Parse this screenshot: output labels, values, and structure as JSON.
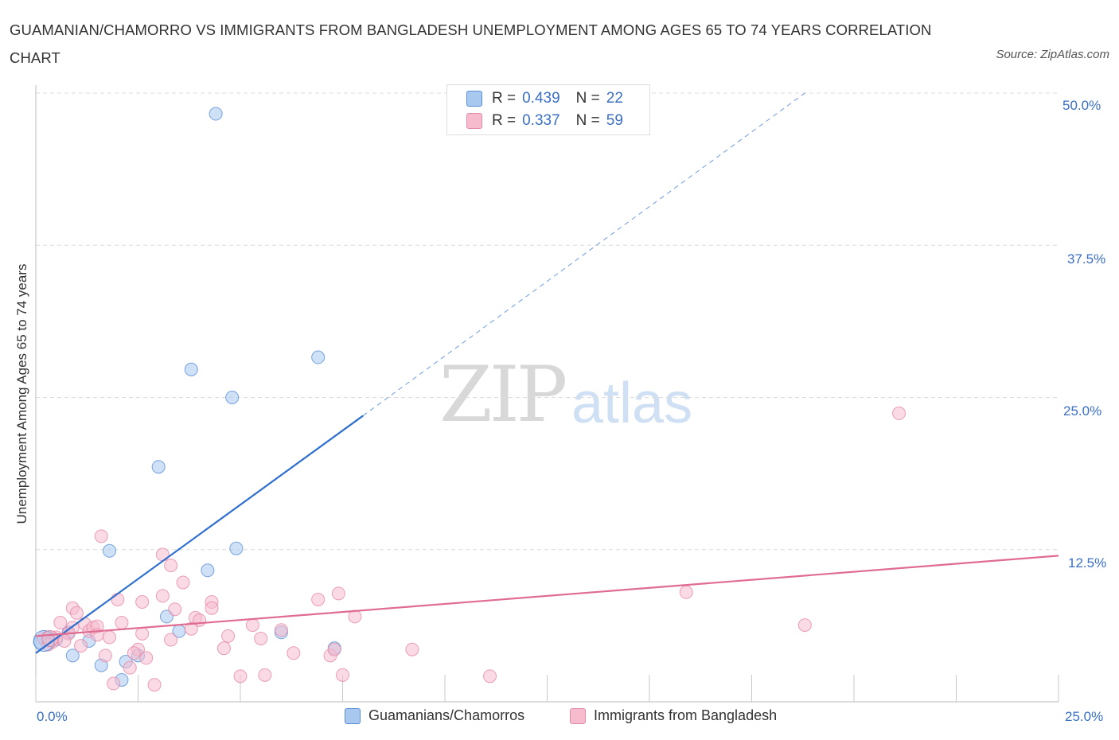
{
  "header": {
    "title": "GUAMANIAN/CHAMORRO VS IMMIGRANTS FROM BANGLADESH UNEMPLOYMENT AMONG AGES 65 TO 74 YEARS CORRELATION CHART",
    "source": "Source: ZipAtlas.com"
  },
  "watermark": {
    "zip": "ZIP",
    "atlas": "atlas"
  },
  "legend_top": [
    {
      "r_label": "R =",
      "r_value": "0.439",
      "n_label": "N =",
      "n_value": "22"
    },
    {
      "r_label": "R =",
      "r_value": "0.337",
      "n_label": "N =",
      "n_value": "59"
    }
  ],
  "legend_bottom": [
    "Guamanians/Chamorros",
    "Immigrants from Bangladesh"
  ],
  "colors": {
    "blue_fill": "#a8c8f0",
    "blue_stroke": "#5b8fd6",
    "blue_line": "#2f6fce",
    "pink_fill": "#f6bccd",
    "pink_stroke": "#e58aa8",
    "pink_line": "#e06c92",
    "tick_text": "#3a6fc4",
    "grid": "#dcdcdc"
  },
  "chart_data": {
    "type": "scatter",
    "title": "GUAMANIAN/CHAMORRO VS IMMIGRANTS FROM BANGLADESH UNEMPLOYMENT AMONG AGES 65 TO 74 YEARS CORRELATION CHART",
    "xlabel": "",
    "ylabel": "Unemployment Among Ages 65 to 74 years",
    "xlim": [
      0,
      25
    ],
    "ylim": [
      0,
      50
    ],
    "x_tick_labels": [
      "0.0%",
      "25.0%"
    ],
    "y_tick_labels": [
      {
        "value": 50,
        "label": "50.0%"
      },
      {
        "value": 37.5,
        "label": "37.5%"
      },
      {
        "value": 25,
        "label": "25.0%"
      },
      {
        "value": 12.5,
        "label": "12.5%"
      }
    ],
    "series": [
      {
        "name": "Guamanians/Chamorros",
        "color": "blue",
        "points": [
          [
            0.1,
            4.9
          ],
          [
            0.3,
            5.3
          ],
          [
            0.5,
            5.1
          ],
          [
            0.8,
            5.7
          ],
          [
            0.9,
            3.8
          ],
          [
            1.3,
            5.0
          ],
          [
            1.6,
            3.0
          ],
          [
            1.8,
            12.4
          ],
          [
            2.1,
            1.8
          ],
          [
            2.2,
            3.3
          ],
          [
            2.5,
            3.8
          ],
          [
            3.0,
            19.3
          ],
          [
            3.2,
            7.0
          ],
          [
            3.5,
            5.8
          ],
          [
            3.8,
            27.3
          ],
          [
            4.2,
            10.8
          ],
          [
            4.8,
            25.0
          ],
          [
            4.9,
            12.6
          ],
          [
            4.4,
            48.3
          ],
          [
            6.0,
            5.7
          ],
          [
            6.9,
            28.3
          ],
          [
            7.3,
            4.4
          ]
        ]
      },
      {
        "name": "Immigrants from Bangladesh",
        "color": "pink",
        "points": [
          [
            0.2,
            5.2
          ],
          [
            0.4,
            4.9
          ],
          [
            0.5,
            5.3
          ],
          [
            0.6,
            6.5
          ],
          [
            0.8,
            5.6
          ],
          [
            0.9,
            6.1
          ],
          [
            0.9,
            7.7
          ],
          [
            1.0,
            7.3
          ],
          [
            1.1,
            4.6
          ],
          [
            1.2,
            6.4
          ],
          [
            1.3,
            5.8
          ],
          [
            1.4,
            6.1
          ],
          [
            1.5,
            6.2
          ],
          [
            1.6,
            13.6
          ],
          [
            1.7,
            3.8
          ],
          [
            1.8,
            5.3
          ],
          [
            1.9,
            1.5
          ],
          [
            2.0,
            8.4
          ],
          [
            2.1,
            6.5
          ],
          [
            2.3,
            2.8
          ],
          [
            2.5,
            4.3
          ],
          [
            2.6,
            5.6
          ],
          [
            2.6,
            8.2
          ],
          [
            2.7,
            3.6
          ],
          [
            2.9,
            1.4
          ],
          [
            3.1,
            8.7
          ],
          [
            3.1,
            12.1
          ],
          [
            3.3,
            5.1
          ],
          [
            3.3,
            11.2
          ],
          [
            3.4,
            7.6
          ],
          [
            3.6,
            9.8
          ],
          [
            3.9,
            6.9
          ],
          [
            4.0,
            6.7
          ],
          [
            4.3,
            8.2
          ],
          [
            4.3,
            7.7
          ],
          [
            4.6,
            4.4
          ],
          [
            4.7,
            5.4
          ],
          [
            5.0,
            2.1
          ],
          [
            5.3,
            6.3
          ],
          [
            5.5,
            5.2
          ],
          [
            5.6,
            2.2
          ],
          [
            6.3,
            4.0
          ],
          [
            6.9,
            8.4
          ],
          [
            7.2,
            3.8
          ],
          [
            7.3,
            4.3
          ],
          [
            7.4,
            8.9
          ],
          [
            7.5,
            2.2
          ],
          [
            7.8,
            7.0
          ],
          [
            9.2,
            4.3
          ],
          [
            11.1,
            2.1
          ],
          [
            15.9,
            9.0
          ],
          [
            18.8,
            6.3
          ],
          [
            21.1,
            23.7
          ],
          [
            0.3,
            4.7
          ],
          [
            0.7,
            5.0
          ],
          [
            1.5,
            5.5
          ],
          [
            2.4,
            4.0
          ],
          [
            3.8,
            6.0
          ],
          [
            6.0,
            5.9
          ]
        ]
      }
    ],
    "trend_lines": [
      {
        "series": "Guamanians/Chamorros",
        "x0": 0,
        "y0": 4.0,
        "x1": 8.0,
        "y1": 23.5,
        "dashed_extension_to": [
          18.8,
          50
        ]
      },
      {
        "series": "Immigrants from Bangladesh",
        "x0": 0,
        "y0": 5.4,
        "x1": 25,
        "y1": 12.0
      }
    ],
    "grid": true,
    "legend": "top-center"
  }
}
